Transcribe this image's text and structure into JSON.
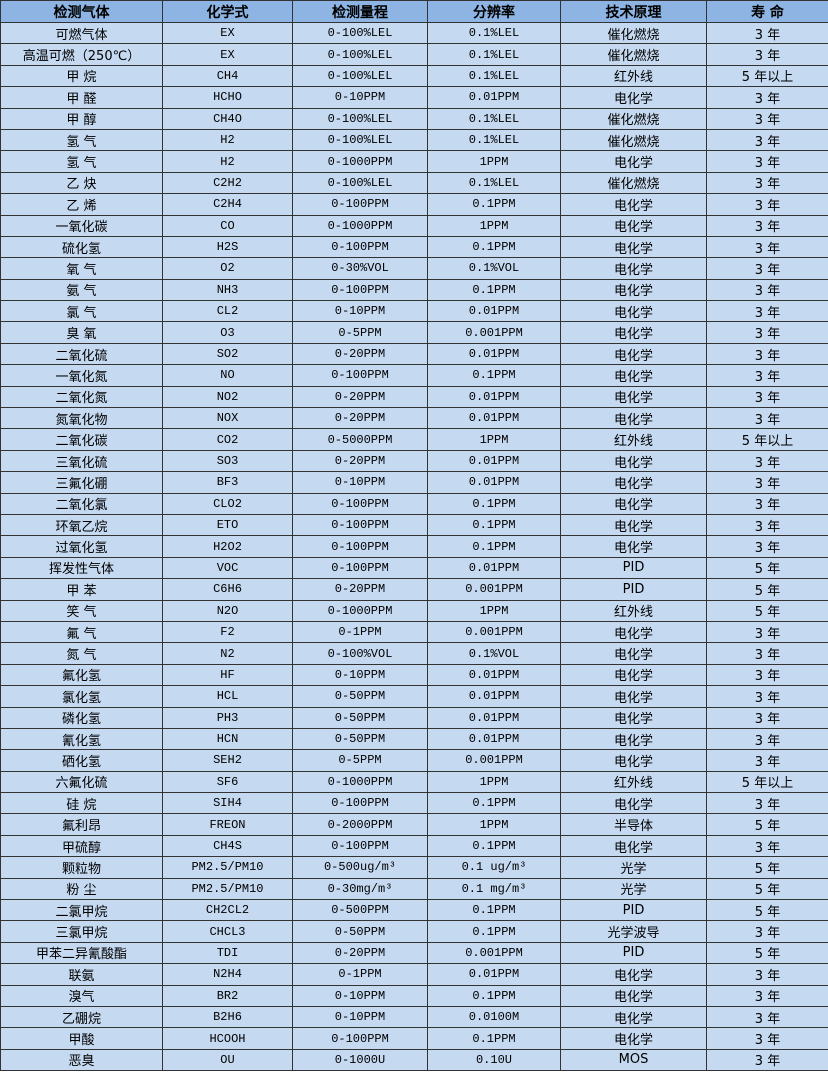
{
  "table": {
    "headers": [
      "检测气体",
      "化学式",
      "检测量程",
      "分辨率",
      "技术原理",
      "寿 命"
    ],
    "rows": [
      [
        "可燃气体",
        "EX",
        "0-100%LEL",
        "0.1%LEL",
        "催化燃烧",
        "3 年"
      ],
      [
        "高温可燃（250℃）",
        "EX",
        "0-100%LEL",
        "0.1%LEL",
        "催化燃烧",
        "3 年"
      ],
      [
        "甲 烷",
        "CH4",
        "0-100%LEL",
        "0.1%LEL",
        "红外线",
        "5 年以上"
      ],
      [
        "甲 醛",
        "HCHO",
        "0-10PPM",
        "0.01PPM",
        "电化学",
        "3 年"
      ],
      [
        "甲 醇",
        "CH4O",
        "0-100%LEL",
        "0.1%LEL",
        "催化燃烧",
        "3 年"
      ],
      [
        "氢 气",
        "H2",
        "0-100%LEL",
        "0.1%LEL",
        "催化燃烧",
        "3 年"
      ],
      [
        "氢 气",
        "H2",
        "0-1000PPM",
        "1PPM",
        "电化学",
        "3 年"
      ],
      [
        "乙 炔",
        "C2H2",
        "0-100%LEL",
        "0.1%LEL",
        "催化燃烧",
        "3 年"
      ],
      [
        "乙 烯",
        "C2H4",
        "0-100PPM",
        "0.1PPM",
        "电化学",
        "3 年"
      ],
      [
        "一氧化碳",
        "CO",
        "0-1000PPM",
        "1PPM",
        "电化学",
        "3 年"
      ],
      [
        "硫化氢",
        "H2S",
        "0-100PPM",
        "0.1PPM",
        "电化学",
        "3 年"
      ],
      [
        "氧 气",
        "O2",
        "0-30%VOL",
        "0.1%VOL",
        "电化学",
        "3 年"
      ],
      [
        "氨 气",
        "NH3",
        "0-100PPM",
        "0.1PPM",
        "电化学",
        "3 年"
      ],
      [
        "氯 气",
        "CL2",
        "0-10PPM",
        "0.01PPM",
        "电化学",
        "3 年"
      ],
      [
        "臭 氧",
        "O3",
        "0-5PPM",
        "0.001PPM",
        "电化学",
        "3 年"
      ],
      [
        "二氧化硫",
        "SO2",
        "0-20PPM",
        "0.01PPM",
        "电化学",
        "3 年"
      ],
      [
        "一氧化氮",
        "NO",
        "0-100PPM",
        "0.1PPM",
        "电化学",
        "3 年"
      ],
      [
        "二氧化氮",
        "NO2",
        "0-20PPM",
        "0.01PPM",
        "电化学",
        "3 年"
      ],
      [
        "氮氧化物",
        "NOX",
        "0-20PPM",
        "0.01PPM",
        "电化学",
        "3 年"
      ],
      [
        "二氧化碳",
        "CO2",
        "0-5000PPM",
        "1PPM",
        "红外线",
        "5 年以上"
      ],
      [
        "三氧化硫",
        "SO3",
        "0-20PPM",
        "0.01PPM",
        "电化学",
        "3 年"
      ],
      [
        "三氟化硼",
        "BF3",
        "0-10PPM",
        "0.01PPM",
        "电化学",
        "3 年"
      ],
      [
        "二氧化氯",
        "CLO2",
        "0-100PPM",
        "0.1PPM",
        "电化学",
        "3 年"
      ],
      [
        "环氧乙烷",
        "ETO",
        "0-100PPM",
        "0.1PPM",
        "电化学",
        "3 年"
      ],
      [
        "过氧化氢",
        "H2O2",
        "0-100PPM",
        "0.1PPM",
        "电化学",
        "3 年"
      ],
      [
        "挥发性气体",
        "VOC",
        "0-100PPM",
        "0.01PPM",
        "PID",
        "5 年"
      ],
      [
        "甲 苯",
        "C6H6",
        "0-20PPM",
        "0.001PPM",
        "PID",
        "5 年"
      ],
      [
        "笑 气",
        "N2O",
        "0-1000PPM",
        "1PPM",
        "红外线",
        "5 年"
      ],
      [
        "氟 气",
        "F2",
        "0-1PPM",
        "0.001PPM",
        "电化学",
        "3 年"
      ],
      [
        "氮 气",
        "N2",
        "0-100%VOL",
        "0.1%VOL",
        "电化学",
        "3 年"
      ],
      [
        "氟化氢",
        "HF",
        "0-10PPM",
        "0.01PPM",
        "电化学",
        "3 年"
      ],
      [
        "氯化氢",
        "HCL",
        "0-50PPM",
        "0.01PPM",
        "电化学",
        "3 年"
      ],
      [
        "磷化氢",
        "PH3",
        "0-50PPM",
        "0.01PPM",
        "电化学",
        "3 年"
      ],
      [
        "氰化氢",
        "HCN",
        "0-50PPM",
        "0.01PPM",
        "电化学",
        "3 年"
      ],
      [
        "硒化氢",
        "SEH2",
        "0-5PPM",
        "0.001PPM",
        "电化学",
        "3 年"
      ],
      [
        "六氟化硫",
        "SF6",
        "0-1000PPM",
        "1PPM",
        "红外线",
        "5 年以上"
      ],
      [
        "硅 烷",
        "SIH4",
        "0-100PPM",
        "0.1PPM",
        "电化学",
        "3 年"
      ],
      [
        "氟利昂",
        "FREON",
        "0-2000PPM",
        "1PPM",
        "半导体",
        "5 年"
      ],
      [
        "甲硫醇",
        "CH4S",
        "0-100PPM",
        "0.1PPM",
        "电化学",
        "3 年"
      ],
      [
        "颗粒物",
        "PM2.5/PM10",
        "0-500ug/m³",
        "0.1 ug/m³",
        "光学",
        "5 年"
      ],
      [
        "粉 尘",
        "PM2.5/PM10",
        "0-30mg/m³",
        "0.1 mg/m³",
        "光学",
        "5 年"
      ],
      [
        "二氯甲烷",
        "CH2CL2",
        "0-500PPM",
        "0.1PPM",
        "PID",
        "5 年"
      ],
      [
        "三氯甲烷",
        "CHCL3",
        "0-50PPM",
        "0.1PPM",
        "光学波导",
        "3 年"
      ],
      [
        "甲苯二异氰酸酯",
        "TDI",
        "0-20PPM",
        "0.001PPM",
        "PID",
        "5 年"
      ],
      [
        "联氨",
        "N2H4",
        "0-1PPM",
        "0.01PPM",
        "电化学",
        "3 年"
      ],
      [
        "溴气",
        "BR2",
        "0-10PPM",
        "0.1PPM",
        "电化学",
        "3 年"
      ],
      [
        "乙硼烷",
        "B2H6",
        "0-10PPM",
        "0.0100M",
        "电化学",
        "3 年"
      ],
      [
        "甲酸",
        "HCOOH",
        "0-100PPM",
        "0.1PPM",
        "电化学",
        "3 年"
      ],
      [
        "恶臭",
        "OU",
        "0-1000U",
        "0.10U",
        "MOS",
        "3 年"
      ]
    ]
  },
  "colors": {
    "header_bg": "#8db4e2",
    "row_bg": "#c5d9f1",
    "border": "#333333"
  }
}
